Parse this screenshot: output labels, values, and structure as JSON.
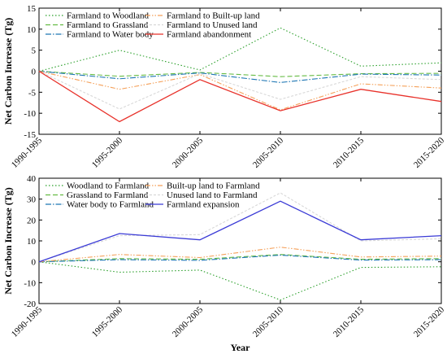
{
  "chart_data": [
    {
      "type": "line",
      "title": "",
      "xlabel": "",
      "ylabel": "Net Carbon Increase (Tg)",
      "ylim": [
        -15,
        15
      ],
      "yticks": [
        -15,
        -10,
        -5,
        0,
        5,
        10,
        15
      ],
      "grid": false,
      "legend_position": "top-left",
      "categories": [
        "1990-1995",
        "1995-2000",
        "2000-2005",
        "2005-2010",
        "2010-2015",
        "2015-2020"
      ],
      "series": [
        {
          "name": "Farmland to Woodland",
          "color": "#2ca02c",
          "dash": "dotted",
          "values": [
            0,
            5,
            0.3,
            10.3,
            1.2,
            2
          ]
        },
        {
          "name": "Farmland to Grassland",
          "color": "#66bb44",
          "dash": "dashed",
          "values": [
            0,
            -1.2,
            -0.3,
            -1.3,
            -0.6,
            -0.5
          ]
        },
        {
          "name": "Farmland to Water body",
          "color": "#1f77b4",
          "dash": "dashdot",
          "values": [
            0,
            -1.8,
            -0.4,
            -2.7,
            -0.7,
            -0.9
          ]
        },
        {
          "name": "Farmland to Built-up land",
          "color": "#f5a15a",
          "dash": "dashdotdot",
          "values": [
            0,
            -4.3,
            -0.8,
            -9.2,
            -3,
            -4
          ]
        },
        {
          "name": "Farmland to Unused land",
          "color": "#d8d8d8",
          "dash": "shortdash",
          "values": [
            0,
            -9,
            -0.6,
            -6.7,
            -1.3,
            -2
          ]
        },
        {
          "name": "Farmland abandonment",
          "color": "#e8312a",
          "dash": "solid",
          "values": [
            0,
            -12,
            -2,
            -9.4,
            -4.3,
            -7.2
          ]
        }
      ]
    },
    {
      "type": "line",
      "title": "",
      "xlabel": "Year",
      "ylabel": "Net Carbon Increase (Tg)",
      "ylim": [
        -20,
        40
      ],
      "yticks": [
        -20,
        -10,
        0,
        10,
        20,
        30,
        40
      ],
      "grid": false,
      "legend_position": "top-left",
      "categories": [
        "1990-1995",
        "1995-2000",
        "2000-2005",
        "2005-2010",
        "2010-2015",
        "2015-2020"
      ],
      "series": [
        {
          "name": "Woodland to Farmland",
          "color": "#2ca02c",
          "dash": "dotted",
          "values": [
            0,
            -5,
            -4,
            -18.3,
            -2.7,
            -2.4
          ]
        },
        {
          "name": "Grassland to Farmland",
          "color": "#66bb44",
          "dash": "dashed",
          "values": [
            0,
            1.5,
            1.2,
            3.5,
            1.2,
            1.5
          ]
        },
        {
          "name": "Water body to Farmland",
          "color": "#1f77b4",
          "dash": "dashdot",
          "values": [
            0,
            1,
            0.7,
            3.2,
            0.8,
            1
          ]
        },
        {
          "name": "Built-up land to Farmland",
          "color": "#f5a15a",
          "dash": "dashdotdot",
          "values": [
            0,
            3.5,
            2,
            7,
            2.3,
            2.7
          ]
        },
        {
          "name": "Unused land to Farmland",
          "color": "#d8d8d8",
          "dash": "shortdash",
          "values": [
            0,
            12.5,
            13,
            33,
            10,
            11
          ]
        },
        {
          "name": "Farmland expansion",
          "color": "#3b3bd6",
          "dash": "solid",
          "values": [
            0,
            13.5,
            10.5,
            29,
            10.5,
            12.5
          ]
        }
      ]
    }
  ]
}
